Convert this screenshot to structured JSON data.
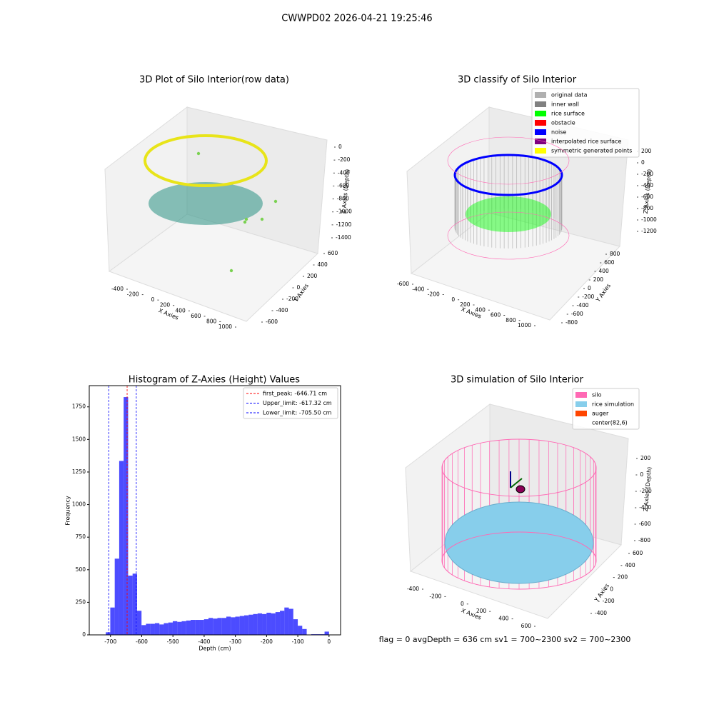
{
  "title": "CWWPD02 2026-04-21 19:25:46",
  "footer": "flag = 0     avgDepth = 636 cm  sv1 = 700~2300  sv2 = 700~2300",
  "chart_data": [
    {
      "type": "scatter3d",
      "title": "3D Plot of Silo Interior(row data)",
      "xlabel": "X Axies",
      "ylabel": "Y Axies",
      "zlabel": "Z Axies (Depth)",
      "xticks": [
        -400,
        -200,
        0,
        200,
        400,
        600,
        800,
        1000
      ],
      "yticks": [
        -600,
        -400,
        -200,
        0,
        200,
        400,
        600
      ],
      "zticks": [
        0,
        -200,
        -400,
        -600,
        -800,
        -1000,
        -1200,
        -1400
      ]
    },
    {
      "type": "scatter3d",
      "title": "3D classify of Silo Interior",
      "xlabel": "X Axies",
      "ylabel": "Y Axies",
      "zlabel": "Z Axies (Depth)",
      "xticks": [
        -600,
        -400,
        -200,
        0,
        200,
        400,
        600,
        800,
        1000
      ],
      "yticks": [
        -800,
        -600,
        -400,
        -200,
        0,
        200,
        400,
        600,
        800
      ],
      "zticks": [
        200,
        0,
        -200,
        -400,
        -600,
        -800,
        -1000,
        -1200
      ],
      "legend": [
        {
          "name": "original data",
          "color": "#b0b0b0"
        },
        {
          "name": "inner wall",
          "color": "#808080"
        },
        {
          "name": "rice surface",
          "color": "#00ff00"
        },
        {
          "name": "obstacle",
          "color": "#ff0000"
        },
        {
          "name": "noise",
          "color": "#0000ff"
        },
        {
          "name": "interpolated rice surface",
          "color": "#800080"
        },
        {
          "name": "symmetric generated points",
          "color": "#ffff00"
        }
      ]
    },
    {
      "type": "histogram",
      "title": "Histogram of Z-Axies (Height) Values",
      "xlabel": "Depth (cm)",
      "ylabel": "Frequency",
      "color": "#0000ff",
      "bins": [
        -715,
        -700.7,
        -686.4,
        -672.1,
        -657.8,
        -643.5,
        -629.2,
        -614.9,
        -600.6,
        -586.3,
        -572,
        -557.7,
        -543.4,
        -529.1,
        -514.8,
        -500.5,
        -486.2,
        -471.9,
        -457.6,
        -443.3,
        -429,
        -414.7,
        -400.4,
        -386.1,
        -371.8,
        -357.5,
        -343.2,
        -328.9,
        -314.6,
        -300.3,
        -286,
        -271.7,
        -257.4,
        -243.1,
        -228.8,
        -214.5,
        -200.2,
        -185.9,
        -171.6,
        -157.3,
        -143,
        -128.7,
        -114.4,
        -100.1,
        -85.8,
        -71.5,
        -57.2,
        -42.9,
        -28.6,
        -14.3,
        0
      ],
      "values": [
        20,
        210,
        585,
        1335,
        1825,
        455,
        470,
        185,
        75,
        85,
        85,
        90,
        80,
        90,
        95,
        105,
        100,
        105,
        110,
        115,
        115,
        115,
        120,
        130,
        125,
        130,
        130,
        140,
        135,
        140,
        145,
        150,
        155,
        160,
        165,
        160,
        170,
        165,
        175,
        185,
        210,
        200,
        120,
        70,
        45,
        0,
        5,
        5,
        5,
        25
      ],
      "xlim": [
        -768,
        37
      ],
      "ylim": [
        0,
        1913
      ],
      "xticks": [
        -700,
        -600,
        -500,
        -400,
        -300,
        -200,
        -100,
        0
      ],
      "yticks": [
        0,
        250,
        500,
        750,
        1000,
        1250,
        1500,
        1750
      ],
      "vlines": [
        {
          "label": "first_peak: -646.71 cm",
          "value": -646.71,
          "color": "#ff0000"
        },
        {
          "label": "Upper_limit: -617.32 cm",
          "value": -617.32,
          "color": "#0000ff"
        },
        {
          "label": "Lower_limit: -705.50 cm",
          "value": -705.5,
          "color": "#0000ff"
        }
      ]
    },
    {
      "type": "surface3d",
      "title": "3D simulation of Silo Interior",
      "xlabel": "X Axies",
      "ylabel": "Y Axies",
      "zlabel": "Z Axies (Depth)",
      "xticks": [
        -400,
        -200,
        0,
        200,
        400,
        600
      ],
      "yticks": [
        -400,
        -200,
        0,
        200,
        400,
        600
      ],
      "zticks": [
        200,
        0,
        -200,
        -400,
        -600,
        -800
      ],
      "legend": [
        {
          "name": "silo",
          "color": "#ff69b4"
        },
        {
          "name": "rice simulation",
          "color": "#87ceeb"
        },
        {
          "name": "auger",
          "color": "#ff4500"
        },
        {
          "name": "center(82,6)",
          "color": "#ffffff"
        }
      ]
    }
  ]
}
